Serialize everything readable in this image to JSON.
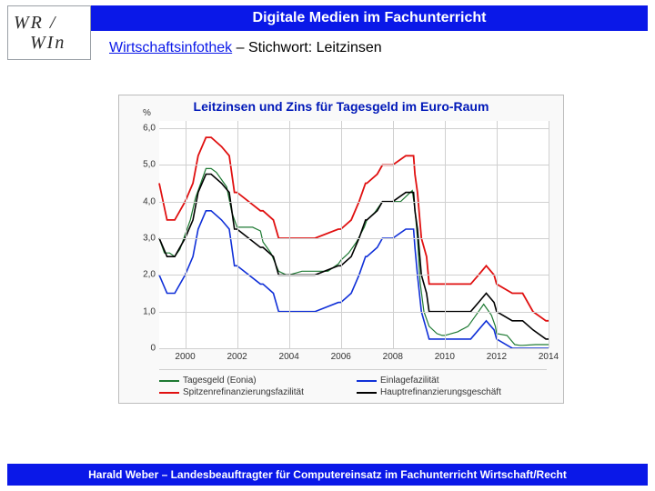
{
  "header": {
    "title": "Digitale Medien im Fachunterricht"
  },
  "logo": {
    "line1": "WR /",
    "line2": "WIn"
  },
  "subhead": {
    "link": "Wirtschaftsinfothek",
    "rest": " – Stichwort: Leitzinsen"
  },
  "footer": {
    "text": "Harald Weber – Landesbeauftragter für Computereinsatz im Fachunterricht Wirtschaft/Recht"
  },
  "chart": {
    "type": "line",
    "title": "Leitzinsen und Zins für Tagesgeld im Euro-Raum",
    "title_color": "#0018b8",
    "background_color": "#f9f9f9",
    "plot_bg": "#ffffff",
    "grid_color": "#d0d0d0",
    "y_unit": "%",
    "ylim": [
      0,
      6.2
    ],
    "ytick_step": 1.0,
    "yticks": [
      0,
      1,
      2,
      3,
      4,
      5,
      6
    ],
    "ytick_labels": [
      "0",
      "1,0",
      "2,0",
      "3,0",
      "4,0",
      "5,0",
      "6,0"
    ],
    "xlim": [
      1999,
      2014
    ],
    "xticks": [
      2000,
      2002,
      2004,
      2006,
      2008,
      2010,
      2012,
      2014
    ],
    "xtick_labels": [
      "2000",
      "2002",
      "2004",
      "2006",
      "2008",
      "2010",
      "2012",
      "2014"
    ],
    "series": [
      {
        "name": "Tagesgeld (Eonia)",
        "color": "#1e7a33",
        "width": 1.2,
        "data": [
          [
            1999.0,
            3.0
          ],
          [
            1999.2,
            2.6
          ],
          [
            1999.4,
            2.6
          ],
          [
            1999.6,
            2.5
          ],
          [
            1999.8,
            2.7
          ],
          [
            2000.0,
            3.1
          ],
          [
            2000.2,
            3.5
          ],
          [
            2000.4,
            4.1
          ],
          [
            2000.6,
            4.5
          ],
          [
            2000.8,
            4.9
          ],
          [
            2001.0,
            4.9
          ],
          [
            2001.2,
            4.8
          ],
          [
            2001.4,
            4.6
          ],
          [
            2001.6,
            4.4
          ],
          [
            2001.8,
            3.7
          ],
          [
            2002.0,
            3.3
          ],
          [
            2002.3,
            3.3
          ],
          [
            2002.6,
            3.3
          ],
          [
            2002.9,
            3.2
          ],
          [
            2003.0,
            2.9
          ],
          [
            2003.3,
            2.6
          ],
          [
            2003.6,
            2.1
          ],
          [
            2003.9,
            2.0
          ],
          [
            2004.0,
            2.0
          ],
          [
            2004.5,
            2.1
          ],
          [
            2004.9,
            2.1
          ],
          [
            2005.0,
            2.1
          ],
          [
            2005.5,
            2.1
          ],
          [
            2005.9,
            2.3
          ],
          [
            2006.0,
            2.4
          ],
          [
            2006.3,
            2.6
          ],
          [
            2006.6,
            2.9
          ],
          [
            2006.9,
            3.3
          ],
          [
            2007.0,
            3.5
          ],
          [
            2007.3,
            3.7
          ],
          [
            2007.6,
            4.0
          ],
          [
            2007.9,
            4.0
          ],
          [
            2008.0,
            4.0
          ],
          [
            2008.3,
            4.0
          ],
          [
            2008.6,
            4.2
          ],
          [
            2008.75,
            4.3
          ],
          [
            2008.85,
            3.8
          ],
          [
            2008.95,
            3.0
          ],
          [
            2009.05,
            1.8
          ],
          [
            2009.2,
            1.0
          ],
          [
            2009.4,
            0.6
          ],
          [
            2009.7,
            0.4
          ],
          [
            2009.9,
            0.35
          ],
          [
            2010.0,
            0.35
          ],
          [
            2010.5,
            0.45
          ],
          [
            2010.9,
            0.6
          ],
          [
            2011.0,
            0.7
          ],
          [
            2011.3,
            1.0
          ],
          [
            2011.5,
            1.2
          ],
          [
            2011.8,
            0.9
          ],
          [
            2011.95,
            0.6
          ],
          [
            2012.0,
            0.4
          ],
          [
            2012.4,
            0.35
          ],
          [
            2012.7,
            0.1
          ],
          [
            2012.9,
            0.08
          ],
          [
            2013.0,
            0.08
          ],
          [
            2013.5,
            0.1
          ],
          [
            2013.9,
            0.1
          ],
          [
            2014.0,
            0.1
          ]
        ]
      },
      {
        "name": "Einlagefazilität",
        "color": "#1030d8",
        "width": 1.6,
        "data": [
          [
            1999.0,
            2.0
          ],
          [
            1999.3,
            1.5
          ],
          [
            1999.6,
            1.5
          ],
          [
            2000.0,
            2.0
          ],
          [
            2000.3,
            2.5
          ],
          [
            2000.5,
            3.25
          ],
          [
            2000.8,
            3.75
          ],
          [
            2001.0,
            3.75
          ],
          [
            2001.4,
            3.5
          ],
          [
            2001.7,
            3.25
          ],
          [
            2001.9,
            2.25
          ],
          [
            2002.0,
            2.25
          ],
          [
            2002.9,
            1.75
          ],
          [
            2003.0,
            1.75
          ],
          [
            2003.4,
            1.5
          ],
          [
            2003.6,
            1.0
          ],
          [
            2004.0,
            1.0
          ],
          [
            2005.0,
            1.0
          ],
          [
            2005.9,
            1.25
          ],
          [
            2006.0,
            1.25
          ],
          [
            2006.4,
            1.5
          ],
          [
            2006.7,
            2.0
          ],
          [
            2006.95,
            2.5
          ],
          [
            2007.0,
            2.5
          ],
          [
            2007.4,
            2.75
          ],
          [
            2007.6,
            3.0
          ],
          [
            2008.0,
            3.0
          ],
          [
            2008.5,
            3.25
          ],
          [
            2008.8,
            3.25
          ],
          [
            2008.85,
            2.75
          ],
          [
            2008.95,
            2.0
          ],
          [
            2009.1,
            1.0
          ],
          [
            2009.3,
            0.5
          ],
          [
            2009.4,
            0.25
          ],
          [
            2010.0,
            0.25
          ],
          [
            2011.0,
            0.25
          ],
          [
            2011.3,
            0.5
          ],
          [
            2011.6,
            0.75
          ],
          [
            2011.9,
            0.5
          ],
          [
            2012.0,
            0.25
          ],
          [
            2012.6,
            0.0
          ],
          [
            2013.0,
            0.0
          ],
          [
            2014.0,
            0.0
          ]
        ]
      },
      {
        "name": "Spitzenrefinanzierungsfazilität",
        "color": "#e01010",
        "width": 1.8,
        "data": [
          [
            1999.0,
            4.5
          ],
          [
            1999.3,
            3.5
          ],
          [
            1999.6,
            3.5
          ],
          [
            2000.0,
            4.0
          ],
          [
            2000.3,
            4.5
          ],
          [
            2000.5,
            5.25
          ],
          [
            2000.8,
            5.75
          ],
          [
            2001.0,
            5.75
          ],
          [
            2001.4,
            5.5
          ],
          [
            2001.7,
            5.25
          ],
          [
            2001.9,
            4.25
          ],
          [
            2002.0,
            4.25
          ],
          [
            2002.9,
            3.75
          ],
          [
            2003.0,
            3.75
          ],
          [
            2003.4,
            3.5
          ],
          [
            2003.6,
            3.0
          ],
          [
            2004.0,
            3.0
          ],
          [
            2005.0,
            3.0
          ],
          [
            2005.9,
            3.25
          ],
          [
            2006.0,
            3.25
          ],
          [
            2006.4,
            3.5
          ],
          [
            2006.7,
            4.0
          ],
          [
            2006.95,
            4.5
          ],
          [
            2007.0,
            4.5
          ],
          [
            2007.4,
            4.75
          ],
          [
            2007.6,
            5.0
          ],
          [
            2008.0,
            5.0
          ],
          [
            2008.5,
            5.25
          ],
          [
            2008.8,
            5.25
          ],
          [
            2008.85,
            4.75
          ],
          [
            2008.95,
            4.25
          ],
          [
            2009.1,
            3.0
          ],
          [
            2009.3,
            2.5
          ],
          [
            2009.4,
            1.75
          ],
          [
            2010.0,
            1.75
          ],
          [
            2011.0,
            1.75
          ],
          [
            2011.3,
            2.0
          ],
          [
            2011.6,
            2.25
          ],
          [
            2011.9,
            2.0
          ],
          [
            2012.0,
            1.75
          ],
          [
            2012.6,
            1.5
          ],
          [
            2013.0,
            1.5
          ],
          [
            2013.4,
            1.0
          ],
          [
            2013.9,
            0.75
          ],
          [
            2014.0,
            0.75
          ]
        ]
      },
      {
        "name": "Hauptrefinanzierungsgeschäft",
        "color": "#000000",
        "width": 1.6,
        "data": [
          [
            1999.0,
            3.0
          ],
          [
            1999.3,
            2.5
          ],
          [
            1999.6,
            2.5
          ],
          [
            2000.0,
            3.0
          ],
          [
            2000.3,
            3.5
          ],
          [
            2000.5,
            4.25
          ],
          [
            2000.8,
            4.75
          ],
          [
            2001.0,
            4.75
          ],
          [
            2001.4,
            4.5
          ],
          [
            2001.7,
            4.25
          ],
          [
            2001.9,
            3.25
          ],
          [
            2002.0,
            3.25
          ],
          [
            2002.9,
            2.75
          ],
          [
            2003.0,
            2.75
          ],
          [
            2003.4,
            2.5
          ],
          [
            2003.6,
            2.0
          ],
          [
            2004.0,
            2.0
          ],
          [
            2005.0,
            2.0
          ],
          [
            2005.9,
            2.25
          ],
          [
            2006.0,
            2.25
          ],
          [
            2006.4,
            2.5
          ],
          [
            2006.7,
            3.0
          ],
          [
            2006.95,
            3.5
          ],
          [
            2007.0,
            3.5
          ],
          [
            2007.4,
            3.75
          ],
          [
            2007.6,
            4.0
          ],
          [
            2008.0,
            4.0
          ],
          [
            2008.5,
            4.25
          ],
          [
            2008.8,
            4.25
          ],
          [
            2008.85,
            3.75
          ],
          [
            2008.95,
            3.25
          ],
          [
            2009.1,
            2.0
          ],
          [
            2009.3,
            1.5
          ],
          [
            2009.4,
            1.0
          ],
          [
            2010.0,
            1.0
          ],
          [
            2011.0,
            1.0
          ],
          [
            2011.3,
            1.25
          ],
          [
            2011.6,
            1.5
          ],
          [
            2011.9,
            1.25
          ],
          [
            2012.0,
            1.0
          ],
          [
            2012.6,
            0.75
          ],
          [
            2013.0,
            0.75
          ],
          [
            2013.4,
            0.5
          ],
          [
            2013.9,
            0.25
          ],
          [
            2014.0,
            0.25
          ]
        ]
      }
    ]
  }
}
